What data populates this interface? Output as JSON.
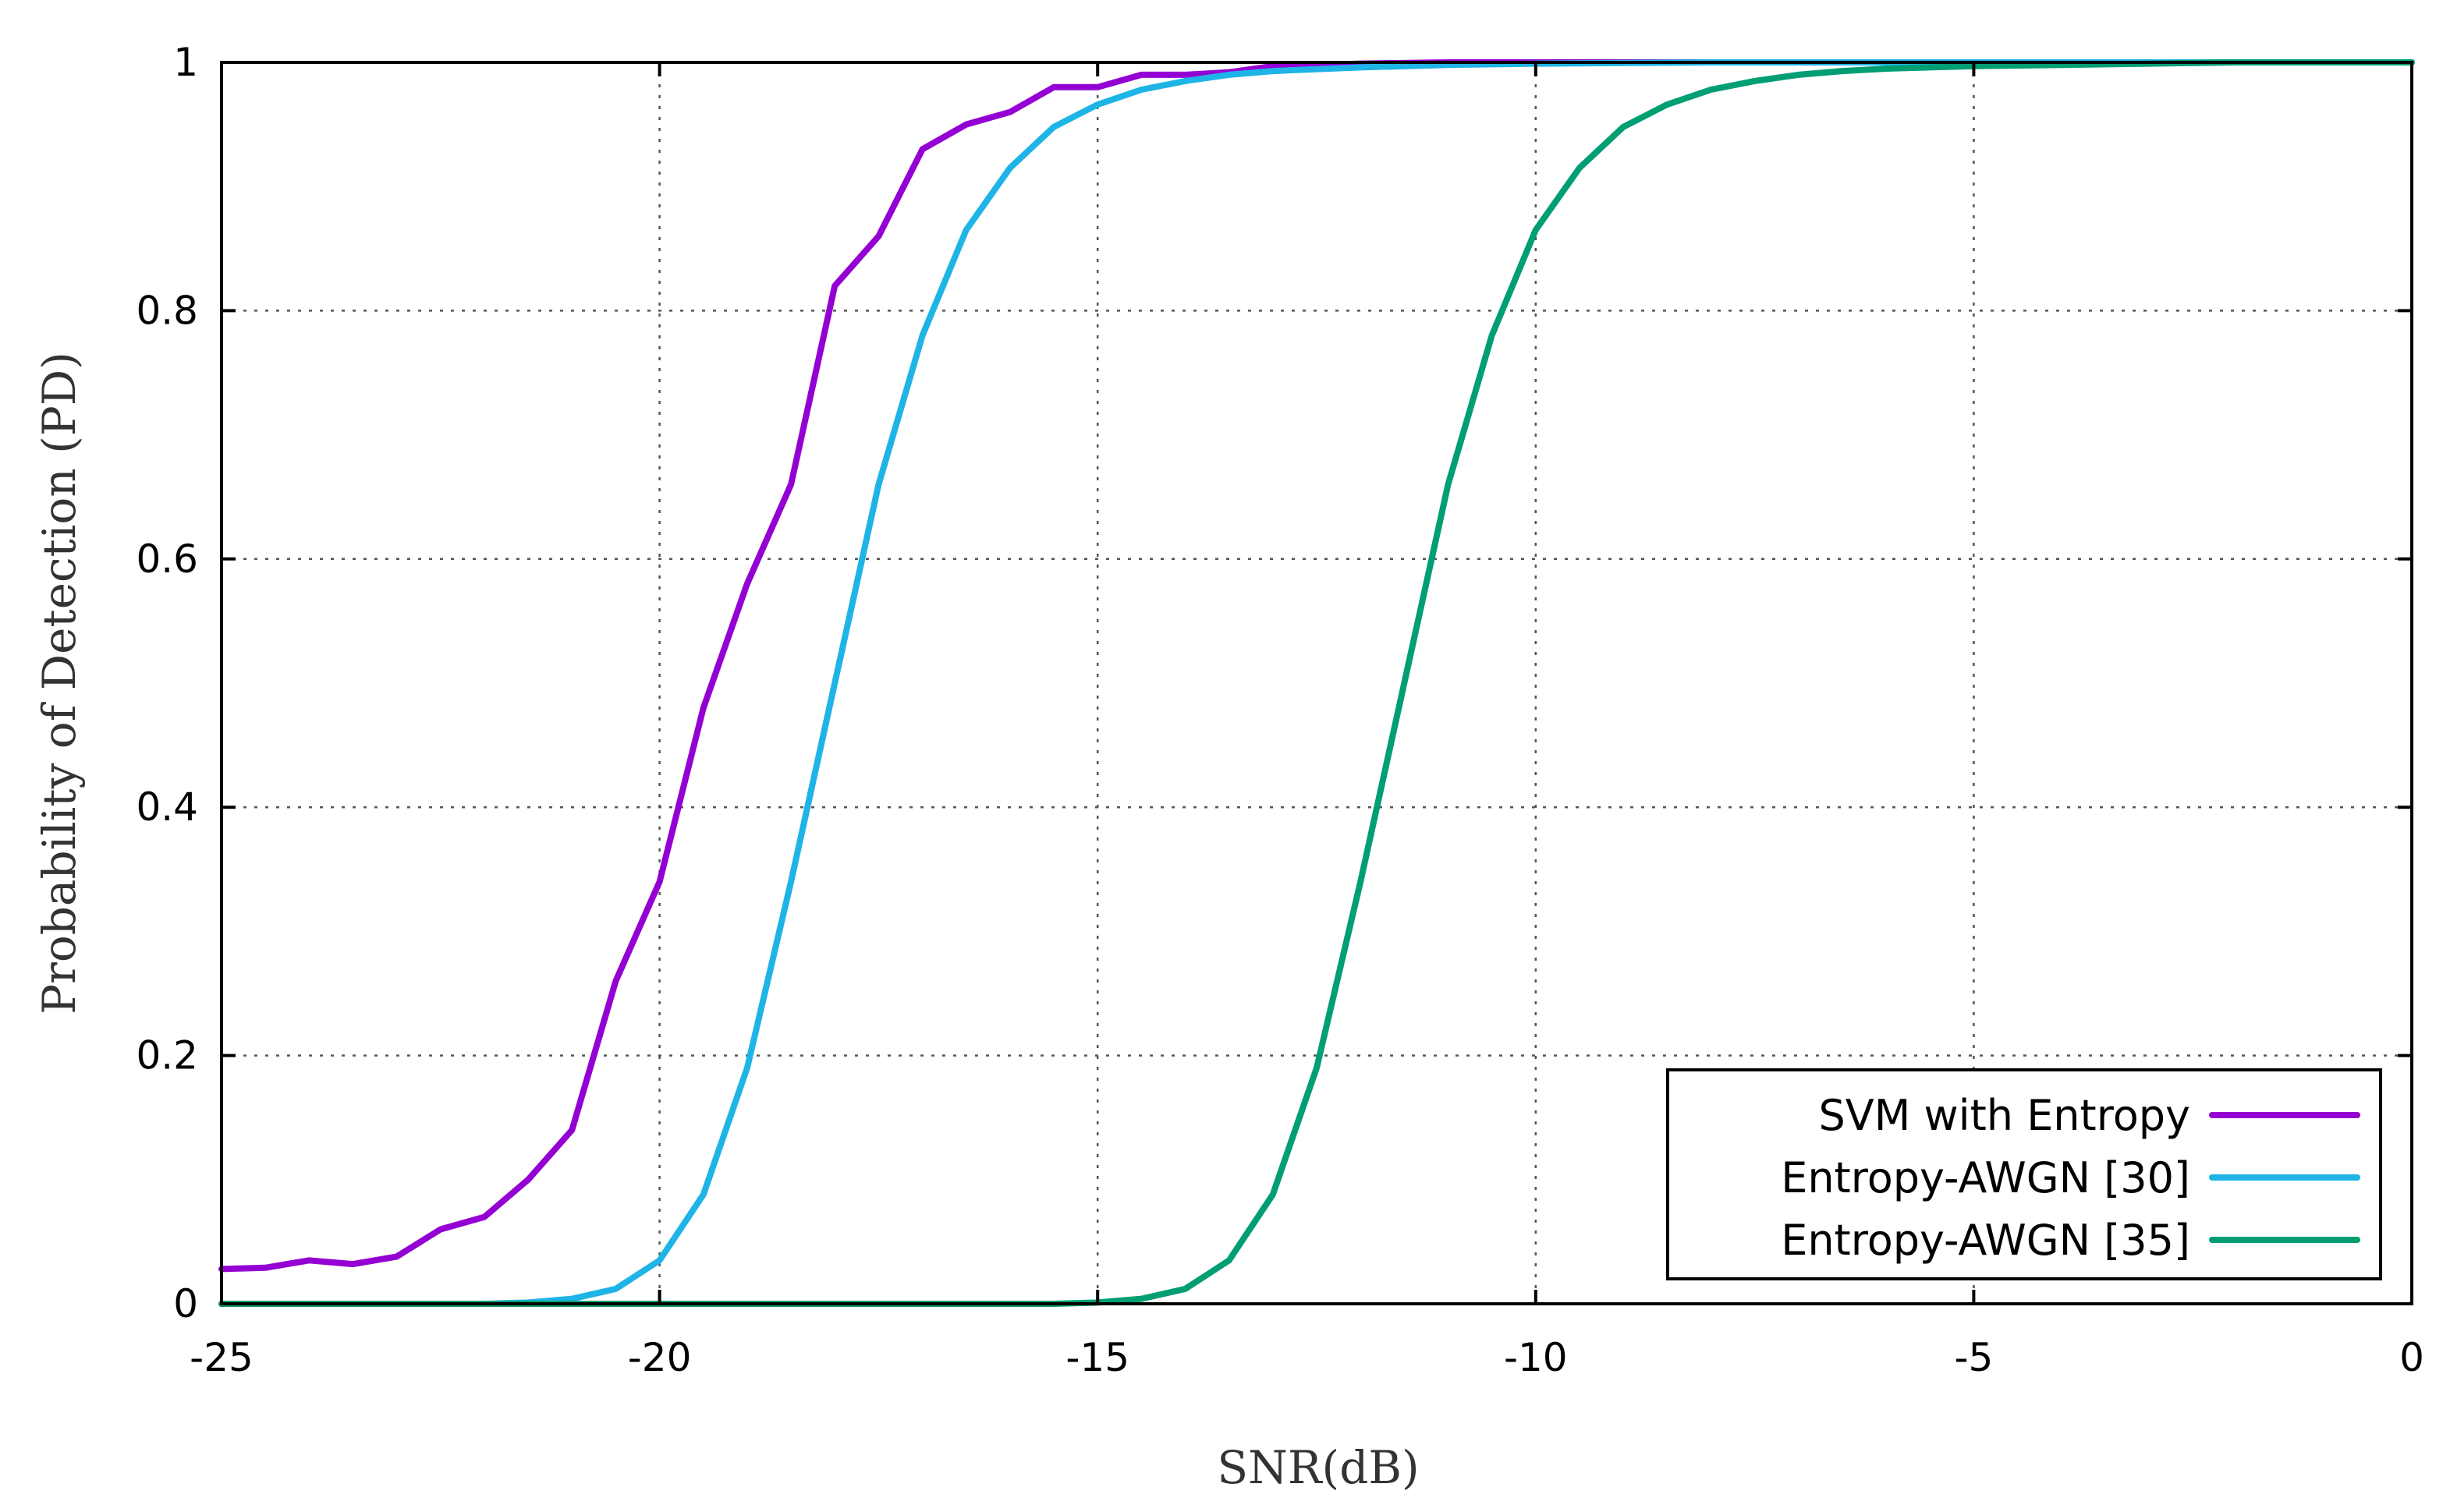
{
  "chart_data": {
    "type": "line",
    "title": "",
    "xlabel": "SNR(dB)",
    "ylabel": "Probability of Detection (PD)",
    "xlim": [
      -25,
      0
    ],
    "ylim": [
      0,
      1
    ],
    "grid": true,
    "legend_position": "bottom-right",
    "x_ticks": [
      -25,
      -20,
      -15,
      -10,
      -5,
      0
    ],
    "x_tick_labels": [
      "-25",
      "-20",
      "-15",
      "-10",
      "-5",
      "0"
    ],
    "y_ticks": [
      0,
      0.2,
      0.4,
      0.6,
      0.8,
      1
    ],
    "y_tick_labels": [
      "0",
      "0.2",
      "0.4",
      "0.6",
      "0.8",
      "1"
    ],
    "series": [
      {
        "name": "SVM with Entropy",
        "color": "#9400d3",
        "x": [
          -25,
          -24.5,
          -24,
          -23.5,
          -23,
          -22.5,
          -22,
          -21.5,
          -21,
          -20.5,
          -20,
          -19.5,
          -19,
          -18.5,
          -18,
          -17.5,
          -17,
          -16.5,
          -16,
          -15.5,
          -15,
          -14.5,
          -14,
          -13.5,
          -13,
          -12.5,
          -12,
          -11,
          -10,
          -8,
          -6,
          -4,
          -2,
          0
        ],
        "y": [
          0.028,
          0.029,
          0.035,
          0.032,
          0.038,
          0.06,
          0.07,
          0.1,
          0.14,
          0.26,
          0.34,
          0.48,
          0.58,
          0.66,
          0.82,
          0.86,
          0.93,
          0.95,
          0.96,
          0.98,
          0.98,
          0.99,
          0.99,
          0.992,
          0.997,
          0.998,
          0.999,
          1,
          1,
          1,
          1,
          1,
          1,
          1
        ]
      },
      {
        "name": "Entropy-AWGN [30]",
        "color": "#1eb4e6",
        "x": [
          -25,
          -24,
          -23,
          -22,
          -21.5,
          -21,
          -20.5,
          -20,
          -19.5,
          -19,
          -18.5,
          -18,
          -17.5,
          -17,
          -16.5,
          -16,
          -15.5,
          -15,
          -14.5,
          -14,
          -13.5,
          -13,
          -12,
          -11,
          -10,
          -8,
          -6,
          -4,
          -2,
          0
        ],
        "y": [
          0,
          0,
          0,
          0,
          0.001,
          0.004,
          0.012,
          0.035,
          0.088,
          0.19,
          0.34,
          0.5,
          0.66,
          0.78,
          0.865,
          0.915,
          0.948,
          0.966,
          0.978,
          0.985,
          0.99,
          0.993,
          0.996,
          0.998,
          0.999,
          1,
          1,
          1,
          1,
          1
        ]
      },
      {
        "name": "Entropy-AWGN [35]",
        "color": "#009e73",
        "x": [
          -25,
          -23,
          -21,
          -19,
          -17,
          -15.5,
          -15,
          -14.5,
          -14,
          -13.5,
          -13,
          -12.5,
          -12,
          -11.5,
          -11,
          -10.5,
          -10,
          -9.5,
          -9,
          -8.5,
          -8,
          -7.5,
          -7,
          -6.5,
          -6,
          -5,
          -4,
          -3,
          -2,
          -1,
          0
        ],
        "y": [
          0,
          0,
          0,
          0,
          0,
          0,
          0.001,
          0.004,
          0.012,
          0.035,
          0.088,
          0.19,
          0.34,
          0.5,
          0.66,
          0.78,
          0.865,
          0.915,
          0.948,
          0.966,
          0.978,
          0.985,
          0.99,
          0.993,
          0.995,
          0.997,
          0.998,
          0.999,
          1,
          1,
          1
        ]
      }
    ]
  }
}
